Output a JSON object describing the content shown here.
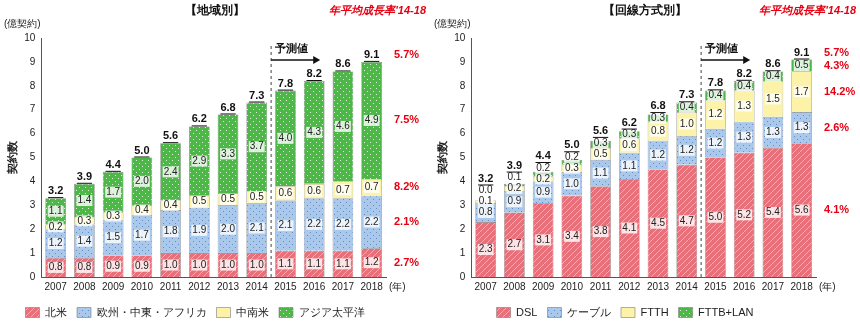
{
  "chart_data": [
    {
      "type": "bar",
      "title": "【地域別】",
      "stacked": true,
      "data_labels": true,
      "legend": "bottom",
      "grid": false,
      "ylabel": "契約数",
      "y_unit": "(億契約)",
      "xlabel": "(年)",
      "growth_header": "年平均成長率'14-18",
      "forecast": {
        "label": "予測値",
        "from": "2015"
      },
      "categories": [
        "2007",
        "2008",
        "2009",
        "2010",
        "2011",
        "2012",
        "2013",
        "2014",
        "2015",
        "2016",
        "2017",
        "2018"
      ],
      "ylim": [
        0,
        10
      ],
      "yticks": [
        0,
        1,
        2,
        3,
        4,
        5,
        6,
        7,
        8,
        9,
        10
      ],
      "series": [
        {
          "name": "北米",
          "color": "#e8707a",
          "values": [
            0.8,
            0.8,
            0.9,
            0.9,
            1.0,
            1.0,
            1.0,
            1.0,
            1.1,
            1.1,
            1.1,
            1.2
          ],
          "value_labels": [
            "0.8",
            "0.8",
            "0.9",
            "0.9",
            "1.0",
            "1.0",
            "1.0",
            "1.0",
            "1.1",
            "1.1",
            "1.1",
            "1.2"
          ],
          "growth_label": "2.7%"
        },
        {
          "name": "欧州・中東・アフリカ",
          "color": "#a9c8ea",
          "values": [
            1.2,
            1.4,
            1.5,
            1.7,
            1.8,
            1.9,
            2.0,
            2.1,
            2.1,
            2.2,
            2.2,
            2.2
          ],
          "value_labels": [
            "1.2",
            "1.4",
            "1.5",
            "1.7",
            "1.8",
            "1.9",
            "2.0",
            "2.1",
            "2.1",
            "2.2",
            "2.2",
            "2.2"
          ],
          "growth_label": "2.1%"
        },
        {
          "name": "中南米",
          "color": "#fcf3a8",
          "values": [
            0.2,
            0.3,
            0.3,
            0.4,
            0.4,
            0.5,
            0.5,
            0.5,
            0.6,
            0.6,
            0.7,
            0.7
          ],
          "value_labels": [
            "0.2",
            "0.3",
            "0.3",
            "0.4",
            "0.4",
            "0.5",
            "0.5",
            "0.5",
            "0.6",
            "0.6",
            "0.7",
            "0.7"
          ],
          "growth_label": "8.2%"
        },
        {
          "name": "アジア太平洋",
          "color": "#4db848",
          "values": [
            1.1,
            1.4,
            1.7,
            2.0,
            2.4,
            2.9,
            3.3,
            3.7,
            4.0,
            4.3,
            4.6,
            4.9
          ],
          "value_labels": [
            "1.1",
            "1.4",
            "1.7",
            "2.0",
            "2.4",
            "2.9",
            "3.3",
            "3.7",
            "4.0",
            "4.3",
            "4.6",
            "4.9"
          ],
          "growth_label": "7.5%"
        }
      ],
      "totals": {
        "values": [
          3.2,
          3.9,
          4.4,
          5.0,
          5.6,
          6.2,
          6.8,
          7.3,
          7.8,
          8.2,
          8.6,
          9.1
        ],
        "value_labels": [
          "3.2",
          "3.9",
          "4.4",
          "5.0",
          "5.6",
          "6.2",
          "6.8",
          "7.3",
          "7.8",
          "8.2",
          "8.6",
          "9.1"
        ],
        "growth_label": "5.7%"
      }
    },
    {
      "type": "bar",
      "title": "【回線方式別】",
      "stacked": true,
      "data_labels": true,
      "legend": "bottom",
      "grid": false,
      "ylabel": "契約数",
      "y_unit": "(億契約)",
      "xlabel": "(年)",
      "growth_header": "年平均成長率'14-18",
      "forecast": {
        "label": "予測値",
        "from": "2015"
      },
      "categories": [
        "2007",
        "2008",
        "2009",
        "2010",
        "2011",
        "2012",
        "2013",
        "2014",
        "2015",
        "2016",
        "2017",
        "2018"
      ],
      "ylim": [
        0,
        10
      ],
      "yticks": [
        0,
        1,
        2,
        3,
        4,
        5,
        6,
        7,
        8,
        9,
        10
      ],
      "series": [
        {
          "name": "DSL",
          "color": "#e8707a",
          "values": [
            2.3,
            2.7,
            3.1,
            3.4,
            3.8,
            4.1,
            4.5,
            4.7,
            5.0,
            5.2,
            5.4,
            5.6
          ],
          "value_labels": [
            "2.3",
            "2.7",
            "3.1",
            "3.4",
            "3.8",
            "4.1",
            "4.5",
            "4.7",
            "5.0",
            "5.2",
            "5.4",
            "5.6"
          ],
          "growth_label": "4.1%"
        },
        {
          "name": "ケーブル",
          "color": "#a9c8ea",
          "values": [
            0.8,
            0.9,
            0.9,
            1.0,
            1.1,
            1.1,
            1.2,
            1.2,
            1.2,
            1.3,
            1.3,
            1.3
          ],
          "value_labels": [
            "0.8",
            "0.9",
            "0.9",
            "1.0",
            "1.1",
            "1.1",
            "1.2",
            "1.2",
            "1.2",
            "1.3",
            "1.3",
            "1.3"
          ],
          "growth_label": "2.6%"
        },
        {
          "name": "FTTH",
          "color": "#fcf3a8",
          "values": [
            0.1,
            0.2,
            0.2,
            0.3,
            0.5,
            0.6,
            0.8,
            1.0,
            1.2,
            1.3,
            1.5,
            1.7
          ],
          "value_labels": [
            "0.1",
            "0.2",
            "0.2",
            "0.3",
            "0.5",
            "0.6",
            "0.8",
            "1.0",
            "1.2",
            "1.3",
            "1.5",
            "1.7"
          ],
          "growth_label": "14.2%"
        },
        {
          "name": "FTTB+LAN",
          "color": "#4db848",
          "values": [
            0.0,
            0.1,
            0.2,
            0.2,
            0.3,
            0.3,
            0.3,
            0.4,
            0.4,
            0.4,
            0.4,
            0.5
          ],
          "value_labels": [
            "0.0",
            "0.1",
            "0.2",
            "0.2",
            "0.3",
            "0.3",
            "0.3",
            "0.4",
            "0.4",
            "0.4",
            "0.4",
            "0.5"
          ],
          "growth_label": "4.3%"
        }
      ],
      "totals": {
        "values": [
          3.2,
          3.9,
          4.4,
          5.0,
          5.6,
          6.2,
          6.8,
          7.3,
          7.8,
          8.2,
          8.6,
          9.1
        ],
        "value_labels": [
          "3.2",
          "3.9",
          "4.4",
          "5.0",
          "5.6",
          "6.2",
          "6.8",
          "7.3",
          "7.8",
          "8.2",
          "8.6",
          "9.1"
        ],
        "growth_label": "5.7%"
      }
    }
  ]
}
